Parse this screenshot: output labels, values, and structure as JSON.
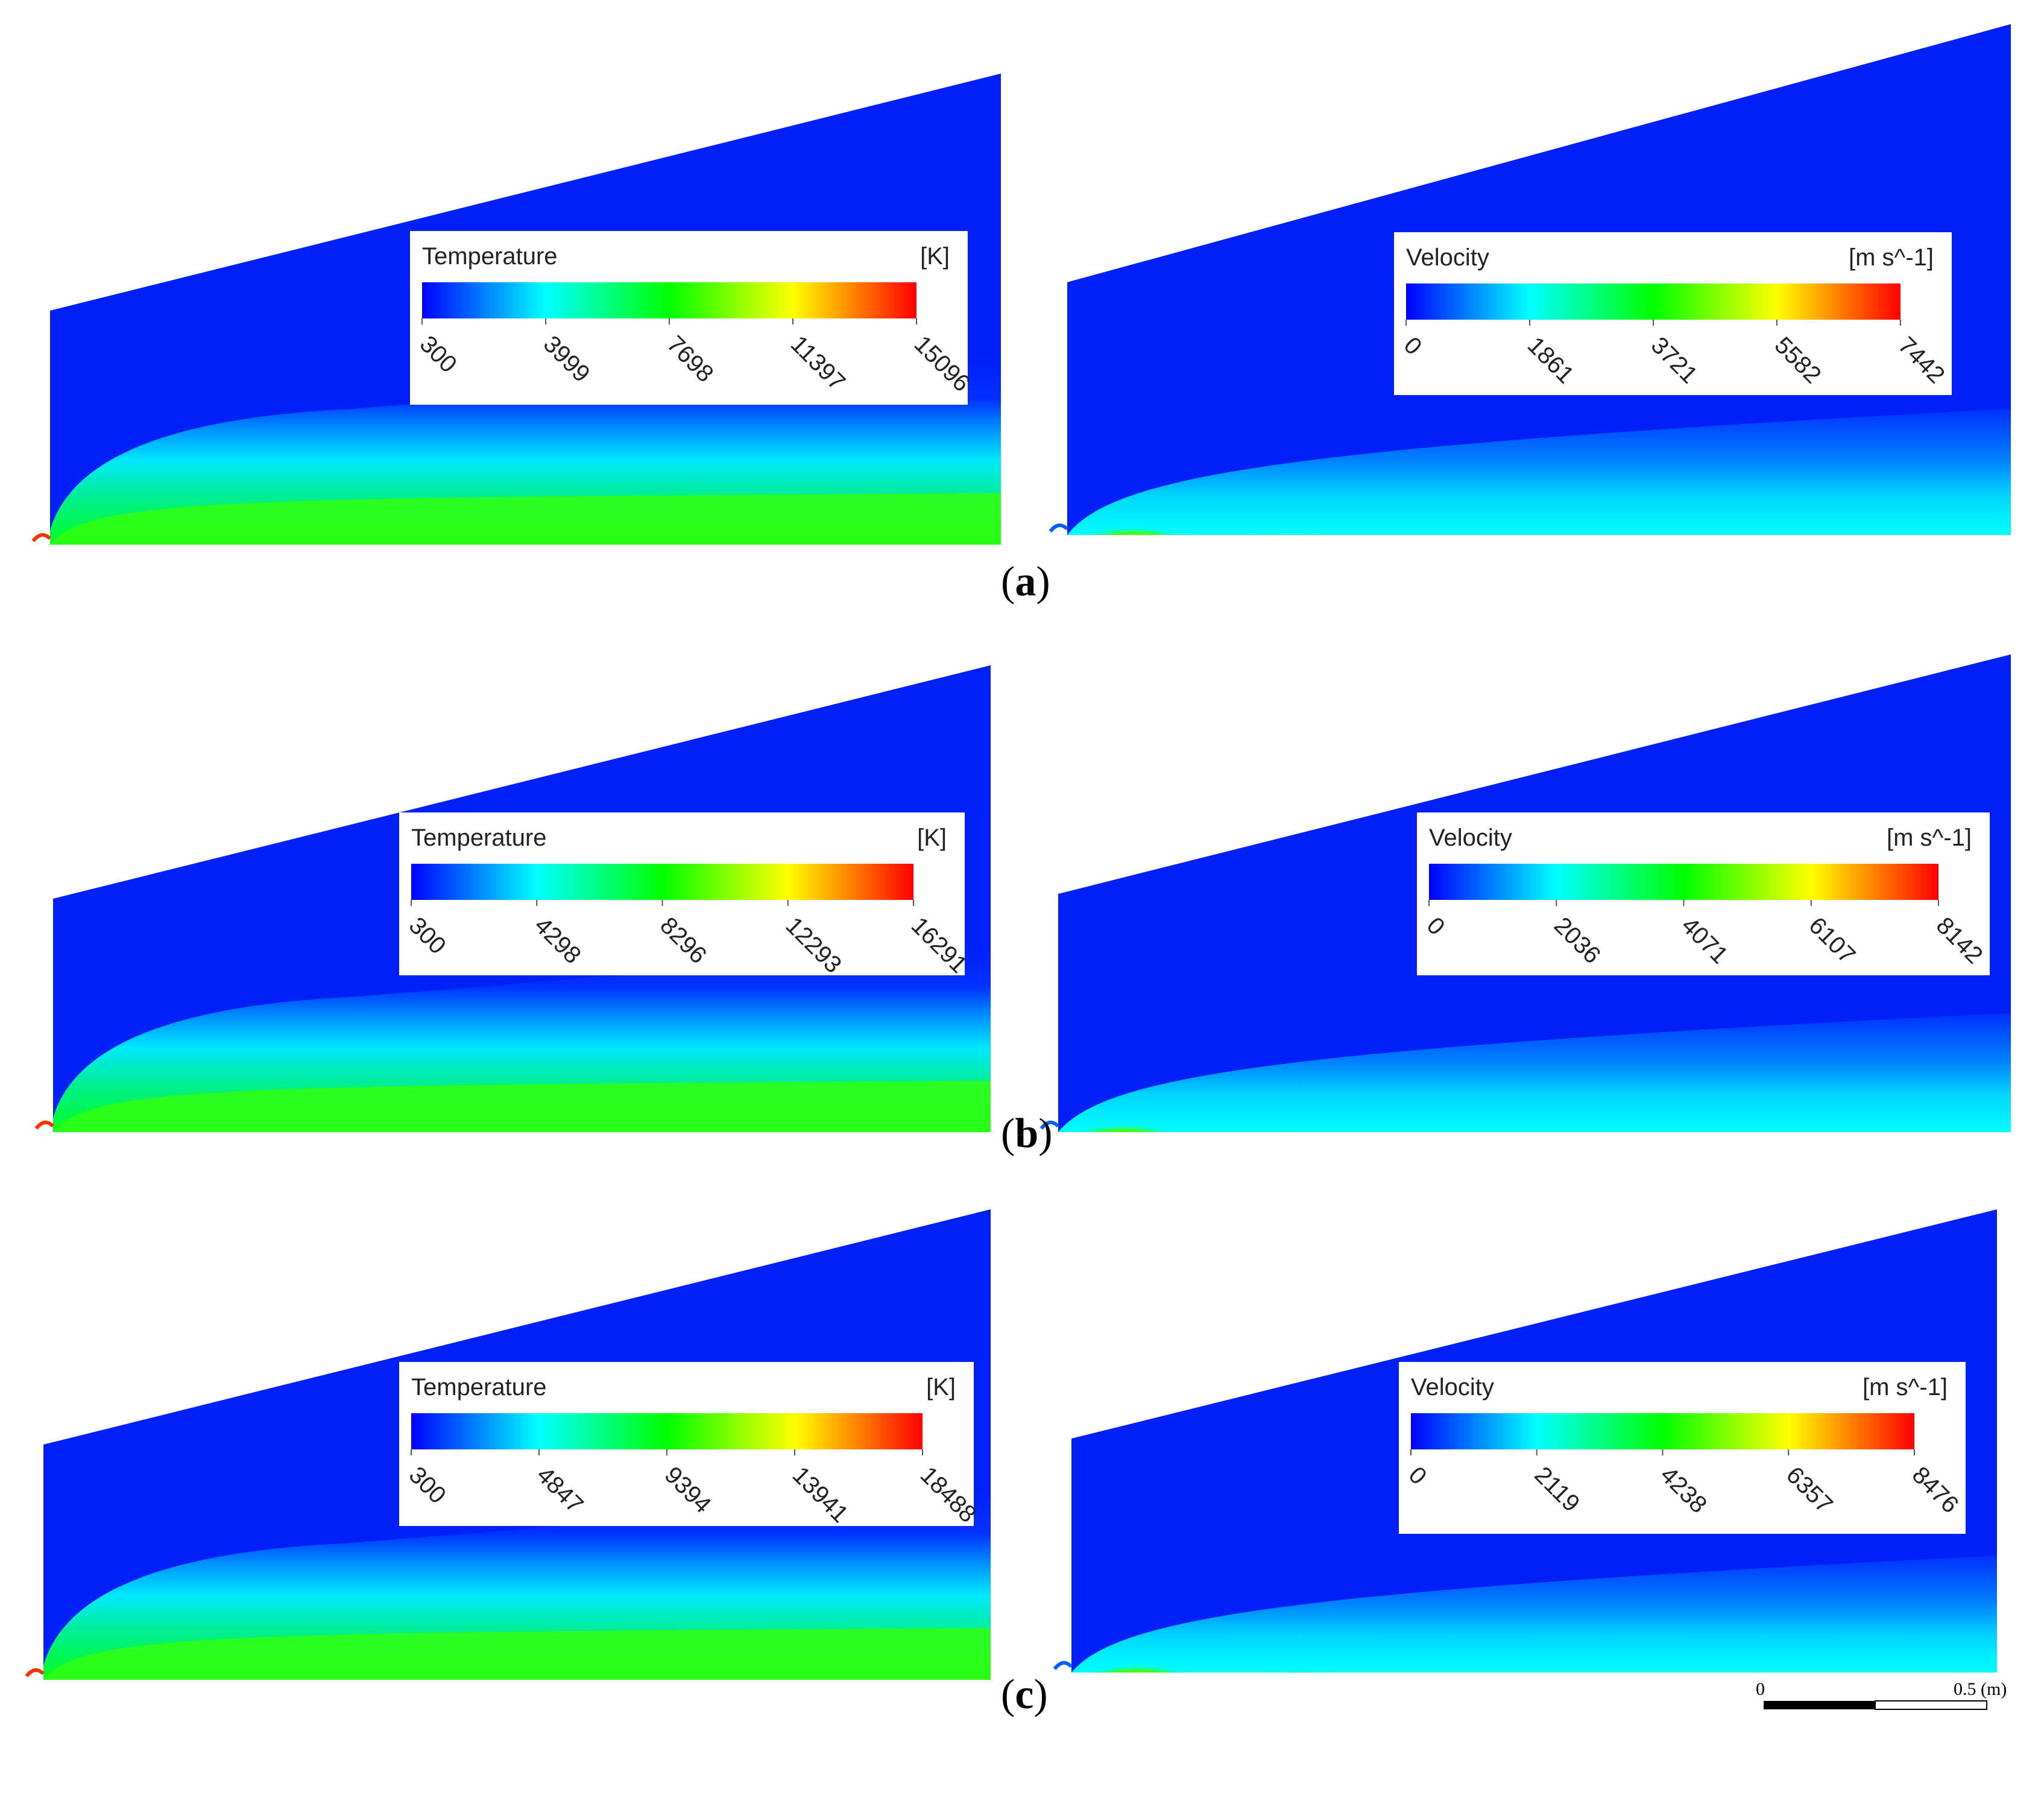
{
  "panels": [
    {
      "caption": "a",
      "temperature": {
        "title": "Temperature",
        "unit": "[K]",
        "ticks": [
          "300",
          "3999",
          "7698",
          "11397",
          "15096"
        ]
      },
      "velocity": {
        "title": "Velocity",
        "unit": "[m s^-1]",
        "ticks": [
          "0",
          "1861",
          "3721",
          "5582",
          "7442"
        ]
      }
    },
    {
      "caption": "b",
      "temperature": {
        "title": "Temperature",
        "unit": "[K]",
        "ticks": [
          "300",
          "4298",
          "8296",
          "12293",
          "16291"
        ]
      },
      "velocity": {
        "title": "Velocity",
        "unit": "[m s^-1]",
        "ticks": [
          "0",
          "2036",
          "4071",
          "6107",
          "8142"
        ]
      }
    },
    {
      "caption": "c",
      "temperature": {
        "title": "Temperature",
        "unit": "[K]",
        "ticks": [
          "300",
          "4847",
          "9394",
          "13941",
          "18488"
        ]
      },
      "velocity": {
        "title": "Velocity",
        "unit": "[m s^-1]",
        "ticks": [
          "0",
          "2119",
          "4238",
          "6357",
          "8476"
        ]
      }
    }
  ],
  "scale_bar": {
    "start_label": "0",
    "end_label": "0.5 (m)"
  },
  "colormap": [
    "#0000ff",
    "#0080ff",
    "#00ffff",
    "#00ff80",
    "#00ff00",
    "#80ff00",
    "#ffff00",
    "#ff8000",
    "#ff0000"
  ]
}
